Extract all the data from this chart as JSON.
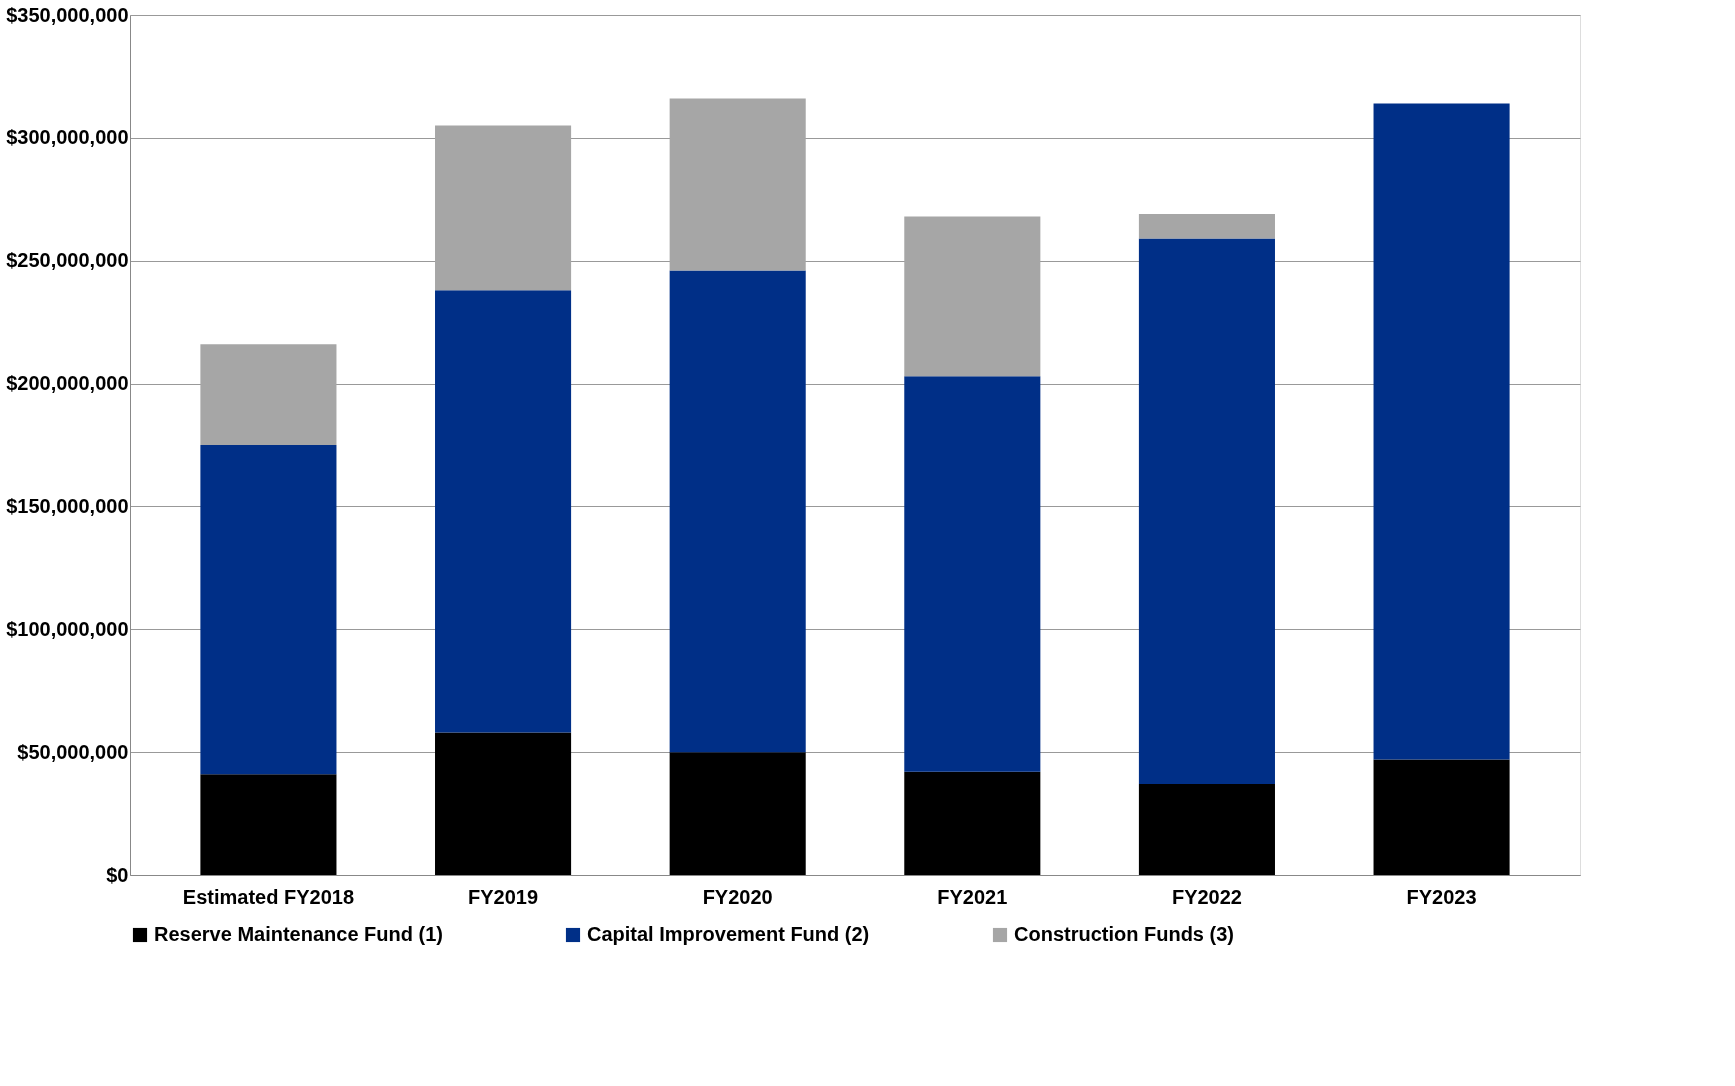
{
  "chart_data": {
    "type": "bar",
    "stacked": true,
    "categories": [
      "Estimated FY2018",
      "FY2019",
      "FY2020",
      "FY2021",
      "FY2022",
      "FY2023"
    ],
    "series": [
      {
        "name": "Reserve Maintenance Fund (1)",
        "color": "#000000",
        "values": [
          41000000,
          58000000,
          50000000,
          42000000,
          37000000,
          47000000
        ]
      },
      {
        "name": "Capital Improvement Fund (2)",
        "color": "#002f87",
        "values": [
          134000000,
          180000000,
          196000000,
          161000000,
          222000000,
          267000000
        ]
      },
      {
        "name": "Construction Funds (3)",
        "color": "#a6a6a6",
        "values": [
          41000000,
          67000000,
          70000000,
          65000000,
          10000000,
          0
        ]
      }
    ],
    "ylim": [
      0,
      350000000
    ],
    "yticks": [
      {
        "value": 0,
        "label": "$0"
      },
      {
        "value": 50000000,
        "label": "$50,000,000"
      },
      {
        "value": 100000000,
        "label": "$100,000,000"
      },
      {
        "value": 150000000,
        "label": "$150,000,000"
      },
      {
        "value": 200000000,
        "label": "$200,000,000"
      },
      {
        "value": 250000000,
        "label": "$250,000,000"
      },
      {
        "value": 300000000,
        "label": "$300,000,000"
      },
      {
        "value": 350000000,
        "label": "$350,000,000"
      }
    ],
    "grid": "y",
    "legend": "bottom"
  }
}
